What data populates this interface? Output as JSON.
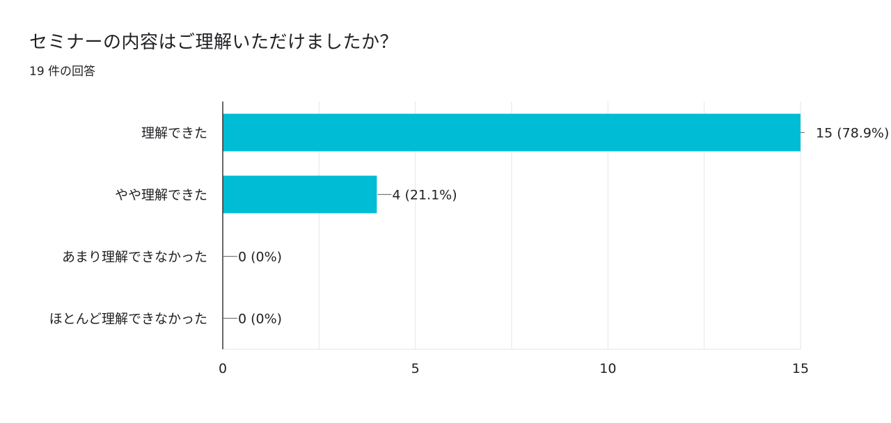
{
  "title": "セミナーの内容はご理解いただけましたか？",
  "subtitle": "19 件の回答",
  "colors": {
    "bar": "#00bcd4",
    "grid": "#e6e6e6",
    "axis": "#333333",
    "leader": "#777777"
  },
  "chart_data": {
    "type": "bar",
    "orientation": "horizontal",
    "categories": [
      "理解できた",
      "やや理解できた",
      "あまり理解できなかった",
      "ほとんど理解できなかった"
    ],
    "values": [
      15,
      4,
      0,
      0
    ],
    "data_labels": [
      "15 (78.9%)",
      "4 (21.1%)",
      "0 (0%)",
      "0 (0%)"
    ],
    "xlim": [
      0,
      15
    ],
    "x_ticks": [
      0,
      5,
      10,
      15
    ],
    "x_tick_labels": [
      "0",
      "5",
      "10",
      "15"
    ],
    "grid": true,
    "xlabel": "",
    "ylabel": ""
  }
}
